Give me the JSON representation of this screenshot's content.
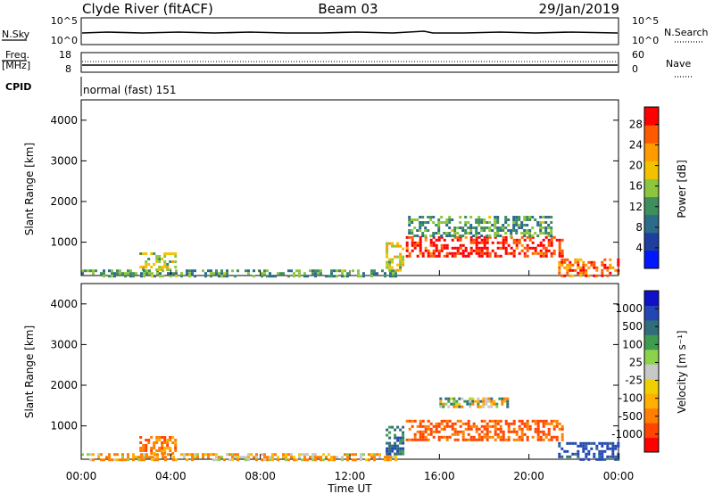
{
  "header": {
    "station": "Clyde River (fitACF)",
    "beam": "Beam 03",
    "date": "29/Jan/2019"
  },
  "status_panels": {
    "nsky": {
      "label": "N.Sky",
      "ticks": [
        "10^5",
        "10^0"
      ]
    },
    "nsearch": {
      "label": "N.Search",
      "ticks": [
        "10^5",
        "10^0"
      ]
    },
    "freq": {
      "label": "Freq.",
      "unit": "[MHz]",
      "ticks": [
        "18",
        "8"
      ]
    },
    "nave": {
      "label": "Nave",
      "ticks": [
        "60",
        "0"
      ]
    },
    "cpid": {
      "label": "CPID",
      "mode": "normal (fast) 151"
    }
  },
  "colors": {
    "power_scale": [
      "#0018ff",
      "#1e3ea0",
      "#2c6b8a",
      "#3f8f5c",
      "#8cc63f",
      "#f2c200",
      "#ff9a00",
      "#ff5a00",
      "#ff0000"
    ],
    "velocity_scale": [
      "#ff0000",
      "#ff4500",
      "#ff7f00",
      "#ffb000",
      "#f0d000",
      "#c8c8c8",
      "#8cd24a",
      "#3f9b4f",
      "#2f6e7a",
      "#2446b4",
      "#1010c8"
    ]
  },
  "chart_data": [
    {
      "type": "heatmap",
      "name": "power",
      "ylabel": "Slant Range [km]",
      "xlabel": "Time UT",
      "ylim": [
        180,
        4500
      ],
      "yticks": [
        "1000",
        "2000",
        "3000",
        "4000"
      ],
      "xticks": [
        "00:00",
        "04:00",
        "08:00",
        "12:00",
        "16:00",
        "20:00",
        "00:00"
      ],
      "colorbar": {
        "label": "Power [dB]",
        "ticks": [
          "4",
          "8",
          "12",
          "16",
          "20",
          "24",
          "28"
        ],
        "range": [
          0,
          30
        ]
      },
      "echo_regions": [
        {
          "t_start": 0.0,
          "t_end": 14.0,
          "r_start": 180,
          "r_end": 330,
          "value": 12
        },
        {
          "t_start": 2.6,
          "t_end": 4.2,
          "r_start": 350,
          "r_end": 750,
          "value": 16
        },
        {
          "t_start": 13.6,
          "t_end": 14.4,
          "r_start": 300,
          "r_end": 1000,
          "value": 18
        },
        {
          "t_start": 14.5,
          "t_end": 21.5,
          "r_start": 650,
          "r_end": 1150,
          "value": 28
        },
        {
          "t_start": 14.6,
          "t_end": 21.0,
          "r_start": 1150,
          "r_end": 1650,
          "value": 12
        },
        {
          "t_start": 21.3,
          "t_end": 24.0,
          "r_start": 180,
          "r_end": 600,
          "value": 24
        }
      ]
    },
    {
      "type": "heatmap",
      "name": "velocity",
      "ylabel": "Slant Range [km]",
      "xlabel": "Time UT",
      "ylim": [
        180,
        4500
      ],
      "yticks": [
        "1000",
        "2000",
        "3000",
        "4000"
      ],
      "xticks": [
        "00:00",
        "04:00",
        "08:00",
        "12:00",
        "16:00",
        "20:00",
        "00:00"
      ],
      "colorbar": {
        "label": "Velocity [m s⁻¹]",
        "ticks": [
          "1000",
          "500",
          "100",
          "25",
          "-25",
          "-100",
          "-500",
          "-1000"
        ]
      },
      "echo_regions": [
        {
          "t_start": 0.0,
          "t_end": 14.0,
          "r_start": 180,
          "r_end": 330,
          "value": -100
        },
        {
          "t_start": 2.6,
          "t_end": 4.2,
          "r_start": 350,
          "r_end": 750,
          "value": -200
        },
        {
          "t_start": 13.6,
          "t_end": 14.4,
          "r_start": 300,
          "r_end": 1000,
          "value": 200
        },
        {
          "t_start": 14.5,
          "t_end": 21.5,
          "r_start": 650,
          "r_end": 1150,
          "value": -300
        },
        {
          "t_start": 16.0,
          "t_end": 19.0,
          "r_start": 1450,
          "r_end": 1700,
          "value": 0
        },
        {
          "t_start": 21.3,
          "t_end": 24.0,
          "r_start": 180,
          "r_end": 600,
          "value": 300
        }
      ]
    }
  ]
}
